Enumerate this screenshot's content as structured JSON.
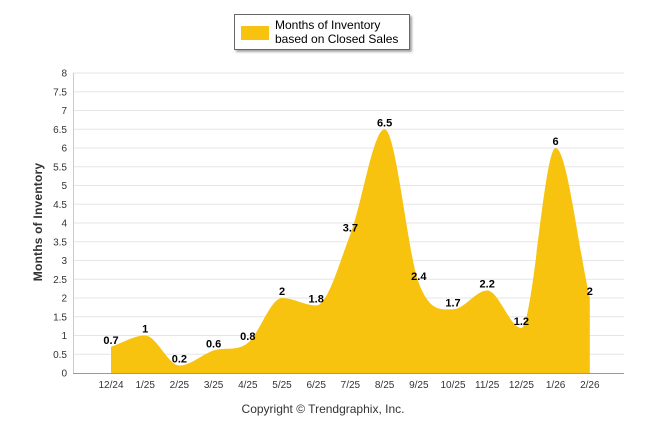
{
  "chart_data": {
    "type": "area",
    "categories": [
      "12/24",
      "1/25",
      "2/25",
      "3/25",
      "4/25",
      "5/25",
      "6/25",
      "7/25",
      "8/25",
      "9/25",
      "10/25",
      "11/25",
      "12/25",
      "1/26",
      "2/26"
    ],
    "series": [
      {
        "name": "Months of Inventory based on Closed Sales",
        "values": [
          0.7,
          1,
          0.2,
          0.6,
          0.8,
          2,
          1.8,
          3.7,
          6.5,
          2.4,
          1.7,
          2.2,
          1.2,
          6,
          2
        ],
        "labels": [
          "0.7",
          "1",
          "0.2",
          "0.6",
          "0.8",
          "2",
          "1.8",
          "3.7",
          "6.5",
          "2.4",
          "1.7",
          "2.2",
          "1.2",
          "6",
          "2"
        ]
      }
    ],
    "ylabel": "Months of Inventory",
    "xlabel": "",
    "ylim": [
      0,
      8
    ],
    "yticks": [
      0,
      0.5,
      1,
      1.5,
      2,
      2.5,
      3,
      3.5,
      4,
      4.5,
      5,
      5.5,
      6,
      6.5,
      7,
      7.5,
      8
    ],
    "ytick_labels": [
      "0",
      "0.5",
      "1",
      "1.5",
      "2",
      "2.5",
      "3",
      "3.5",
      "4",
      "4.5",
      "5",
      "5.5",
      "6",
      "6.5",
      "7",
      "7.5",
      "8"
    ],
    "grid": true,
    "legend_position": "top-center",
    "fill_color": "#F7C30E",
    "grid_color": "#e6e6e6"
  },
  "legend": {
    "label": "Months of Inventory based on Closed Sales"
  },
  "copyright": "Copyright © Trendgraphix, Inc."
}
